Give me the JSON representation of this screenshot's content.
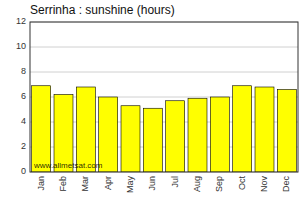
{
  "chart_data": {
    "type": "bar",
    "title": "Serrinha : sunshine (hours)",
    "categories": [
      "Jan",
      "Feb",
      "Mar",
      "Apr",
      "May",
      "Jun",
      "Jul",
      "Aug",
      "Sep",
      "Oct",
      "Nov",
      "Dec"
    ],
    "values": [
      6.9,
      6.2,
      6.8,
      6.0,
      5.3,
      5.1,
      5.7,
      5.9,
      6.0,
      6.9,
      6.8,
      6.6
    ],
    "color": "#FFFF00",
    "ylim": [
      0,
      12
    ],
    "yticks": [
      0,
      2,
      4,
      6,
      8,
      10,
      12
    ],
    "grid": true,
    "annotations": [
      "www.allmetsat.com"
    ]
  }
}
